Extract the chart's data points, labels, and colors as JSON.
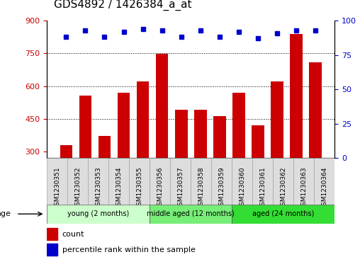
{
  "title": "GDS4892 / 1426384_a_at",
  "samples": [
    "GSM1230351",
    "GSM1230352",
    "GSM1230353",
    "GSM1230354",
    "GSM1230355",
    "GSM1230356",
    "GSM1230357",
    "GSM1230358",
    "GSM1230359",
    "GSM1230360",
    "GSM1230361",
    "GSM1230362",
    "GSM1230363",
    "GSM1230364"
  ],
  "counts": [
    330,
    555,
    370,
    570,
    620,
    748,
    490,
    490,
    462,
    570,
    420,
    620,
    840,
    710
  ],
  "percentiles": [
    88,
    93,
    88,
    92,
    94,
    93,
    88,
    93,
    88,
    92,
    87,
    91,
    93,
    93
  ],
  "bar_color": "#cc0000",
  "dot_color": "#0000cc",
  "ylim_left": [
    270,
    900
  ],
  "ylim_right": [
    0,
    100
  ],
  "yticks_left": [
    300,
    450,
    600,
    750,
    900
  ],
  "yticks_right": [
    0,
    25,
    50,
    75,
    100
  ],
  "group_configs": [
    {
      "start": 0,
      "end": 5,
      "label": "young (2 months)",
      "color": "#ccffcc"
    },
    {
      "start": 5,
      "end": 9,
      "label": "middle aged (12 months)",
      "color": "#77ee77"
    },
    {
      "start": 9,
      "end": 14,
      "label": "aged (24 months)",
      "color": "#33dd33"
    }
  ],
  "legend_count_label": "count",
  "legend_percentile_label": "percentile rank within the sample",
  "age_label": "age",
  "title_fontsize": 11,
  "tick_fontsize": 8,
  "sample_fontsize": 6.5,
  "bar_bottom": 270,
  "grid_yticks": [
    450,
    600,
    750
  ]
}
